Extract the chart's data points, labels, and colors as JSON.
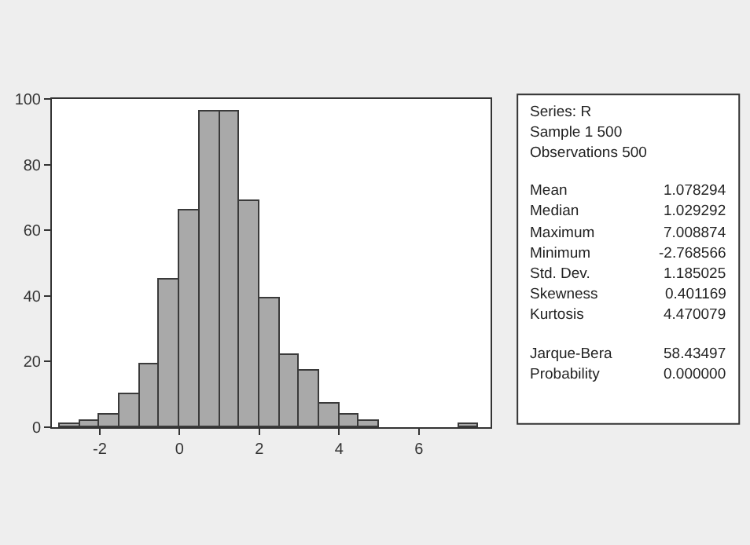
{
  "chart_data": {
    "type": "histogram",
    "bins": [
      -3,
      -2.5,
      -2,
      -1.5,
      -1,
      -0.5,
      0,
      0.5,
      1,
      1.5,
      2,
      2.5,
      3,
      3.5,
      4,
      4.5,
      5,
      5.5,
      6,
      6.5,
      7,
      7.5
    ],
    "values": [
      1,
      2,
      4,
      10,
      19,
      45,
      66,
      96,
      96,
      69,
      39,
      22,
      17,
      7,
      4,
      2,
      0,
      0,
      0,
      0,
      1
    ],
    "color": "#a9a9a9",
    "xlim": [
      -3.2,
      7.8
    ],
    "xticks": [
      -2,
      0,
      2,
      4,
      6
    ],
    "ylim": [
      0,
      100
    ],
    "yticks": [
      0,
      20,
      40,
      60,
      80,
      100
    ],
    "annotations": [
      "Series: R",
      "Sample 1 500",
      "Observations 500",
      "Mean\t1.078294",
      "Median\t1.029292",
      "Maximum\t7.008874",
      "Minimum\t-2.768566",
      "Std. Dev.\t1.185025",
      "Skewness\t0.401169",
      "Kurtosis\t4.470079",
      "Jarque-Bera\t58.43497",
      "Probability\t0.000000"
    ]
  }
}
